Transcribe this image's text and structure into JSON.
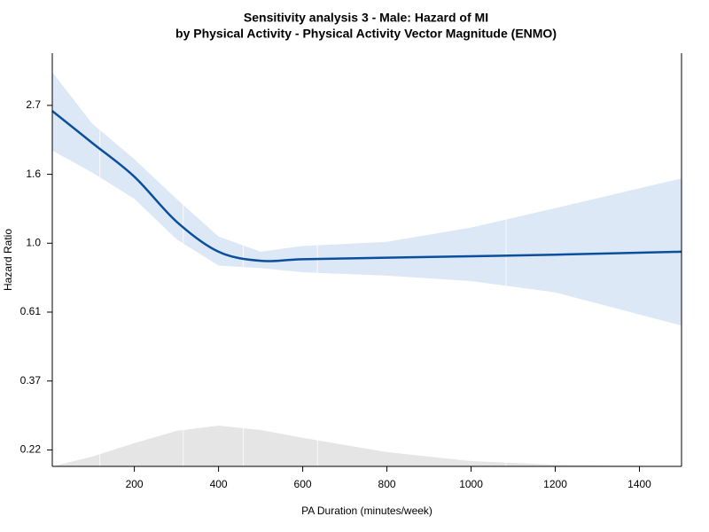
{
  "chart_data": {
    "type": "line",
    "title": "Sensitivity analysis 3 - Male: Hazard of MI",
    "subtitle": "by Physical Activity - Physical Activity Vector Magnitude (ENMO)",
    "x_label": "PA Duration (minutes/week)",
    "y_label": "Hazard Ratio",
    "log_y": true,
    "x": [
      5,
      100,
      200,
      300,
      400,
      500,
      600,
      800,
      1000,
      1200,
      1500
    ],
    "series": [
      {
        "color": "#0b4f9c",
        "values": [
          2.61,
          2.07,
          1.62,
          1.17,
          0.94,
          0.88,
          0.89,
          0.9,
          0.91,
          0.92,
          0.94
        ],
        "lower": [
          1.96,
          1.67,
          1.38,
          1.03,
          0.85,
          0.835,
          0.81,
          0.79,
          0.76,
          0.7,
          0.55
        ],
        "upper": [
          3.46,
          2.38,
          1.84,
          1.38,
          1.05,
          0.94,
          0.98,
          1.01,
          1.12,
          1.29,
          1.6
        ],
        "band_color": "#dce8f5"
      }
    ],
    "knots": [
      118,
      316,
      459,
      635,
      1083
    ],
    "density": {
      "color": "#e5e5e5",
      "values": [
        0,
        0.24,
        0.57,
        0.87,
        1,
        0.89,
        0.7,
        0.35,
        0.13,
        0.04,
        0
      ]
    },
    "xlim": [
      5,
      1500
    ],
    "ylim": [
      0.198,
      3.97
    ],
    "xticks": [
      200,
      400,
      600,
      800,
      1000,
      1200,
      1400
    ],
    "yticks": [
      {
        "value": 0.2231,
        "label": "0.22"
      },
      {
        "value": 0.3679,
        "label": "0.37"
      },
      {
        "value": 0.6065,
        "label": "0.61"
      },
      {
        "value": 1,
        "label": "1.0"
      },
      {
        "value": 1.6487,
        "label": "1.6"
      },
      {
        "value": 2.7183,
        "label": "2.7"
      }
    ]
  }
}
